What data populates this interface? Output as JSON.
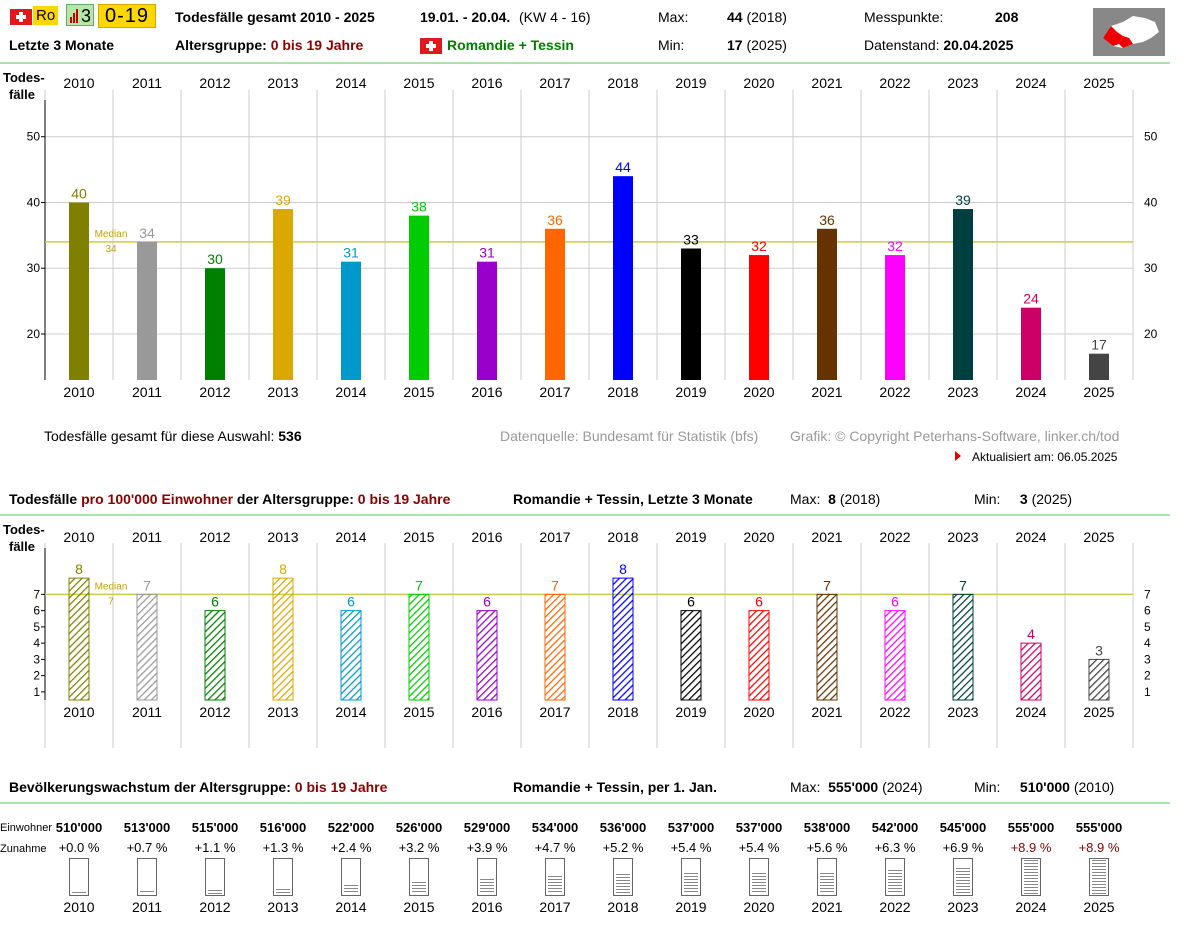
{
  "header": {
    "lang_badge": "Ro",
    "chart_badge": "3",
    "age_badge": "0-19",
    "title": "Todesfälle gesamt 2010 - 2025",
    "period": "19.01. - 20.04.",
    "kw": "(KW 4 - 16)",
    "max_label": "Max:",
    "max_value": "44",
    "max_year": "(2018)",
    "min_label": "Min:",
    "min_value": "17",
    "min_year": "(2025)",
    "points_label": "Messpunkte:",
    "points_value": "208",
    "data_state_label": "Datenstand:",
    "data_state_value": "20.04.2025",
    "subtitle_left": "Letzte 3 Monate",
    "age_group_label": "Altersgruppe:",
    "age_group_value": "0 bis 19 Jahre",
    "region": "Romandie + Tessin",
    "map_icon": "switzerland-map-icon"
  },
  "summary": {
    "total_label": "Todesfälle gesamt für diese Auswahl:",
    "total_value": "536",
    "source": "Datenquelle: Bundesamt für Statistik (bfs)",
    "copyright": "Grafik: © Copyright Peterhans-Software, linker.ch/tod",
    "updated": "Aktualisiert am: 06.05.2025"
  },
  "section2": {
    "title_a": "Todesfälle",
    "title_b": "pro 100'000 Einwohner",
    "title_c": "der Altersgruppe:",
    "age": "0 bis 19 Jahre",
    "region": "Romandie + Tessin, Letzte 3 Monate",
    "max_label": "Max:",
    "max_value": "8",
    "max_year": "(2018)",
    "min_label": "Min:",
    "min_value": "3",
    "min_year": "(2025)"
  },
  "section3": {
    "title": "Bevölkerungswachstum der Altersgruppe:",
    "age": "0 bis 19 Jahre",
    "region": "Romandie + Tessin, per 1. Jan.",
    "max_label": "Max:",
    "max_value": "555'000",
    "max_year": "(2024)",
    "min_label": "Min:",
    "min_value": "510'000",
    "min_year": "(2010)",
    "row1_label": "Einwohner",
    "row2_label": "Zunahme"
  },
  "colors": [
    "#808000",
    "#999999",
    "#008000",
    "#daa800",
    "#0099cc",
    "#00cc00",
    "#9900cc",
    "#ff6600",
    "#0000ff",
    "#000000",
    "#ff0000",
    "#663300",
    "#ff00ff",
    "#003f3f",
    "#cc0066",
    "#444444"
  ],
  "label_colors": [
    "#808000",
    "#999999",
    "#008000",
    "#daa800",
    "#0099cc",
    "#00cc00",
    "#9900cc",
    "#ff6600",
    "#0000ff",
    "#000000",
    "#ff0000",
    "#663300",
    "#ff00ff",
    "#003f3f",
    "#cc0066",
    "#444444"
  ],
  "chart_data": [
    {
      "type": "bar",
      "categories": [
        "2010",
        "2011",
        "2012",
        "2013",
        "2014",
        "2015",
        "2016",
        "2017",
        "2018",
        "2019",
        "2020",
        "2021",
        "2022",
        "2023",
        "2024",
        "2025"
      ],
      "values": [
        40,
        34,
        30,
        39,
        31,
        38,
        31,
        36,
        44,
        33,
        32,
        36,
        32,
        39,
        24,
        17
      ],
      "ylabel": "Todes-\nfälle",
      "yticks": [
        20,
        30,
        40,
        50
      ],
      "ylim": [
        13,
        53
      ],
      "median": 34,
      "median_label": "Median",
      "grid": true
    },
    {
      "type": "bar",
      "categories": [
        "2010",
        "2011",
        "2012",
        "2013",
        "2014",
        "2015",
        "2016",
        "2017",
        "2018",
        "2019",
        "2020",
        "2021",
        "2022",
        "2023",
        "2024",
        "2025"
      ],
      "values": [
        8,
        7,
        6,
        8,
        6,
        7,
        6,
        7,
        8,
        6,
        6,
        7,
        6,
        7,
        4,
        3
      ],
      "ylabel": "Todes-\nfälle",
      "yticks": [
        1,
        2,
        3,
        4,
        5,
        6,
        7
      ],
      "ylim": [
        0.5,
        8.5
      ],
      "median": 7,
      "median_label": "Median",
      "grid": true
    },
    {
      "type": "table",
      "categories": [
        "2010",
        "2011",
        "2012",
        "2013",
        "2014",
        "2015",
        "2016",
        "2017",
        "2018",
        "2019",
        "2020",
        "2021",
        "2022",
        "2023",
        "2024",
        "2025"
      ],
      "population": [
        "510'000",
        "513'000",
        "515'000",
        "516'000",
        "522'000",
        "526'000",
        "529'000",
        "534'000",
        "536'000",
        "537'000",
        "537'000",
        "538'000",
        "542'000",
        "545'000",
        "555'000",
        "555'000"
      ],
      "growth": [
        "+0.0 %",
        "+0.7 %",
        "+1.1 %",
        "+1.3 %",
        "+2.4 %",
        "+3.2 %",
        "+3.9 %",
        "+4.7 %",
        "+5.2 %",
        "+5.4 %",
        "+5.4 %",
        "+5.6 %",
        "+6.3 %",
        "+6.9 %",
        "+8.9 %",
        "+8.9 %"
      ],
      "growth_values": [
        0.0,
        0.7,
        1.1,
        1.3,
        2.4,
        3.2,
        3.9,
        4.7,
        5.2,
        5.4,
        5.4,
        5.6,
        6.3,
        6.9,
        8.9,
        8.9
      ]
    }
  ]
}
